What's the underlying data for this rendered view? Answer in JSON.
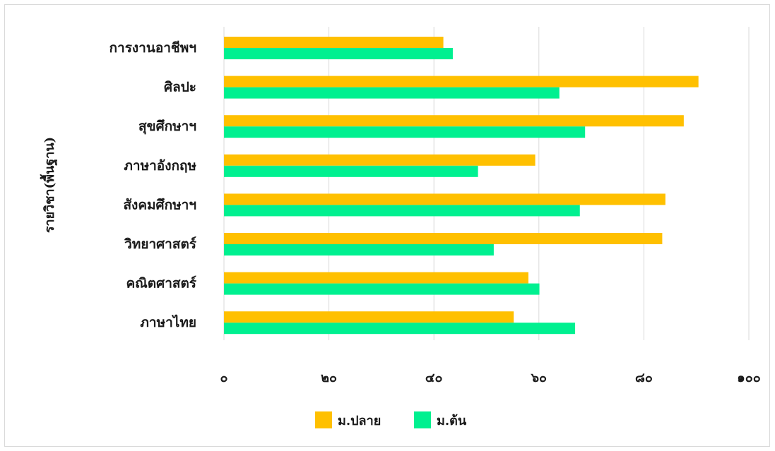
{
  "chart_data": {
    "type": "bar",
    "orientation": "horizontal",
    "ylabel": "รายวิชา(พื้นฐาน)",
    "xlabel": "",
    "xlim": [
      0,
      100
    ],
    "x_ticks": [
      "๐",
      "๒๐",
      "๔๐",
      "๖๐",
      "๘๐",
      "๑๐๐"
    ],
    "x_tick_values": [
      0,
      20,
      40,
      60,
      80,
      100
    ],
    "grid": "vertical",
    "legend_position": "bottom",
    "categories": [
      "การงานอาชีพฯ",
      "ศิลปะ",
      "สุขศึกษาฯ",
      "ภาษาอังกฤษ",
      "สังคมศึกษาฯ",
      "วิทยาศาสตร์",
      "คณิตศาสตร์",
      "ภาษาไทย"
    ],
    "series": [
      {
        "name": "ม.ปลาย",
        "color": "#FFC000",
        "values": [
          41.8,
          90.4,
          87.6,
          59.3,
          84.1,
          83.5,
          58.0,
          55.2
        ]
      },
      {
        "name": "ม.ต้น",
        "color": "#00F090",
        "values": [
          43.6,
          63.9,
          68.8,
          48.4,
          67.8,
          51.4,
          60.1,
          66.9
        ]
      }
    ]
  }
}
